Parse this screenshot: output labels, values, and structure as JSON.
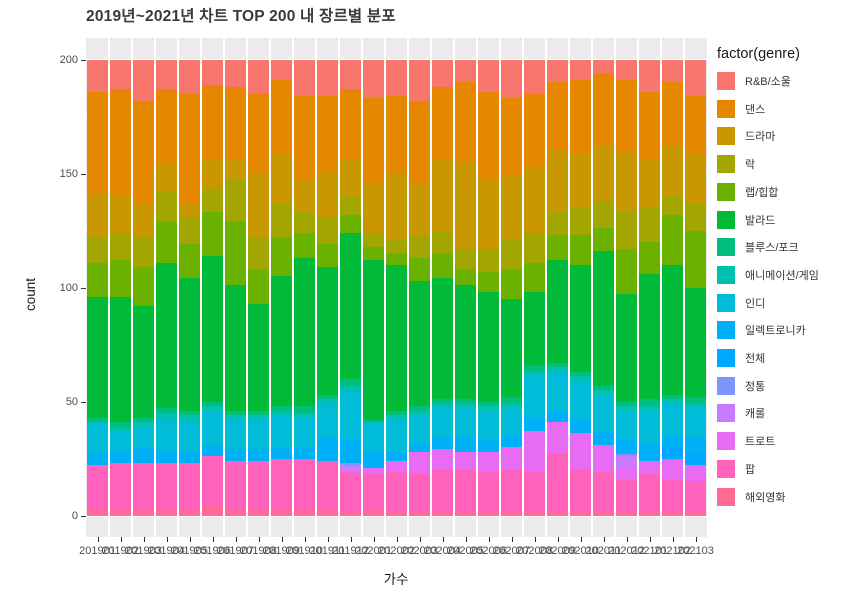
{
  "chart_data": {
    "type": "bar",
    "subtype": "stacked-vertical",
    "title": "2019년~2021년 차트 TOP 200 내 장르별 분포",
    "xlabel": "가수",
    "ylabel": "count",
    "ylim": [
      0,
      200
    ],
    "y_ticks": [
      0,
      50,
      100,
      150,
      200
    ],
    "y_minor_ticks": [
      25,
      75,
      125,
      175
    ],
    "grid": true,
    "panel_bg": "#EBEBEB",
    "grid_color": "#FFFFFF",
    "bar_total": 200,
    "legend_title": "factor(genre)",
    "legend_position": "right",
    "stack_note": "series listed in legend order (top of stack first); bars stack with last series at bottom",
    "categories": [
      "201901",
      "201902",
      "201903",
      "201904",
      "201905",
      "201906",
      "201907",
      "201908",
      "201909",
      "201910",
      "201911",
      "201912",
      "202001",
      "202002",
      "202003",
      "202004",
      "202005",
      "202006",
      "202007",
      "202008",
      "202009",
      "202010",
      "202011",
      "202012",
      "202101",
      "202102",
      "202103"
    ],
    "series": [
      {
        "name": "R&B/소울",
        "color": "#F8766D",
        "values": [
          14,
          13,
          18,
          13,
          15,
          11,
          12,
          15,
          9,
          16,
          16,
          13,
          17,
          16,
          18,
          12,
          10,
          14,
          17,
          15,
          10,
          9,
          6,
          9,
          14,
          10,
          16
        ]
      },
      {
        "name": "댄스",
        "color": "#E58700",
        "values": [
          45,
          47,
          45,
          33,
          48,
          33,
          32,
          35,
          32,
          37,
          33,
          31,
          37,
          34,
          36,
          32,
          35,
          39,
          34,
          32,
          29,
          32,
          32,
          31,
          30,
          28,
          25
        ]
      },
      {
        "name": "드라마",
        "color": "#C99800",
        "values": [
          19,
          16,
          15,
          12,
          6,
          13,
          9,
          28,
          22,
          14,
          20,
          16,
          22,
          29,
          23,
          31,
          38,
          30,
          28,
          29,
          28,
          24,
          24,
          27,
          21,
          22,
          22
        ]
      },
      {
        "name": "락",
        "color": "#A3A500",
        "values": [
          11,
          12,
          13,
          13,
          12,
          10,
          18,
          14,
          15,
          9,
          12,
          8,
          6,
          6,
          10,
          10,
          9,
          10,
          13,
          13,
          10,
          12,
          12,
          16,
          15,
          8,
          12
        ]
      },
      {
        "name": "랩/힙합",
        "color": "#6BB100",
        "values": [
          15,
          16,
          17,
          18,
          15,
          19,
          28,
          15,
          17,
          11,
          10,
          8,
          6,
          5,
          10,
          11,
          7,
          9,
          13,
          13,
          11,
          13,
          10,
          20,
          14,
          22,
          25
        ]
      },
      {
        "name": "발라드",
        "color": "#00BA38",
        "values": [
          53,
          55,
          49,
          64,
          58,
          64,
          55,
          47,
          57,
          65,
          56,
          64,
          70,
          64,
          55,
          53,
          50,
          48,
          43,
          32,
          45,
          47,
          59,
          47,
          55,
          57,
          48
        ]
      },
      {
        "name": "블루스/포크",
        "color": "#00BF7D",
        "values": [
          2,
          2,
          2,
          2,
          2,
          2,
          2,
          2,
          2,
          3,
          2,
          3,
          1,
          2,
          2,
          2,
          2,
          2,
          3,
          3,
          2,
          2,
          2,
          2,
          3,
          2,
          3
        ]
      },
      {
        "name": "애니메이션/게임",
        "color": "#00C0AF",
        "values": [
          1,
          2,
          2,
          3,
          3,
          2,
          2,
          2,
          2,
          2,
          2,
          3,
          1,
          2,
          2,
          2,
          2,
          2,
          2,
          2,
          2,
          2,
          2,
          2,
          2,
          2,
          2
        ]
      },
      {
        "name": "인디",
        "color": "#00BCD8",
        "values": [
          13,
          9,
          9,
          14,
          13,
          15,
          13,
          13,
          14,
          13,
          15,
          21,
          12,
          14,
          12,
          13,
          13,
          13,
          12,
          18,
          17,
          17,
          16,
          13,
          14,
          14,
          13
        ]
      },
      {
        "name": "일렉트로니카",
        "color": "#00B0F6",
        "values": [
          5,
          5,
          7,
          5,
          5,
          5,
          5,
          5,
          5,
          5,
          10,
          10,
          7,
          4,
          4,
          5,
          6,
          5,
          5,
          6,
          5,
          6,
          6,
          6,
          8,
          5,
          7
        ]
      },
      {
        "name": "전체",
        "color": "#00A9FF",
        "values": [
          0,
          0,
          0,
          0,
          0,
          0,
          0,
          0,
          0,
          0,
          0,
          0,
          0,
          0,
          0,
          0,
          0,
          0,
          0,
          0,
          0,
          0,
          0,
          0,
          0,
          5,
          5
        ]
      },
      {
        "name": "정통",
        "color": "#7C96FF",
        "values": [
          0,
          0,
          0,
          0,
          0,
          0,
          0,
          0,
          0,
          0,
          0,
          1,
          0,
          0,
          0,
          0,
          0,
          0,
          0,
          0,
          0,
          0,
          0,
          1,
          0,
          0,
          0
        ]
      },
      {
        "name": "캐롤",
        "color": "#C77CFF",
        "values": [
          0,
          0,
          0,
          0,
          0,
          0,
          0,
          0,
          0,
          0,
          0,
          3,
          0,
          0,
          0,
          0,
          0,
          0,
          0,
          0,
          0,
          0,
          0,
          5,
          0,
          0,
          0
        ]
      },
      {
        "name": "트로트",
        "color": "#E76BF3",
        "values": [
          0,
          0,
          0,
          0,
          0,
          0,
          0,
          0,
          0,
          0,
          0,
          0,
          3,
          5,
          10,
          9,
          8,
          9,
          10,
          18,
          14,
          16,
          12,
          5,
          6,
          9,
          7
        ]
      },
      {
        "name": "팝",
        "color": "#FF62BC",
        "values": [
          19,
          20,
          20,
          20,
          20,
          22,
          21,
          21,
          22,
          22,
          21,
          17,
          15,
          17,
          16,
          18,
          18,
          17,
          18,
          17,
          25,
          18,
          17,
          14,
          16,
          14,
          13
        ]
      },
      {
        "name": "해외영화",
        "color": "#FF6B94",
        "values": [
          3,
          3,
          3,
          3,
          3,
          4,
          3,
          3,
          3,
          3,
          3,
          2,
          3,
          2,
          2,
          2,
          2,
          2,
          2,
          2,
          2,
          2,
          2,
          2,
          2,
          2,
          2
        ]
      }
    ]
  }
}
